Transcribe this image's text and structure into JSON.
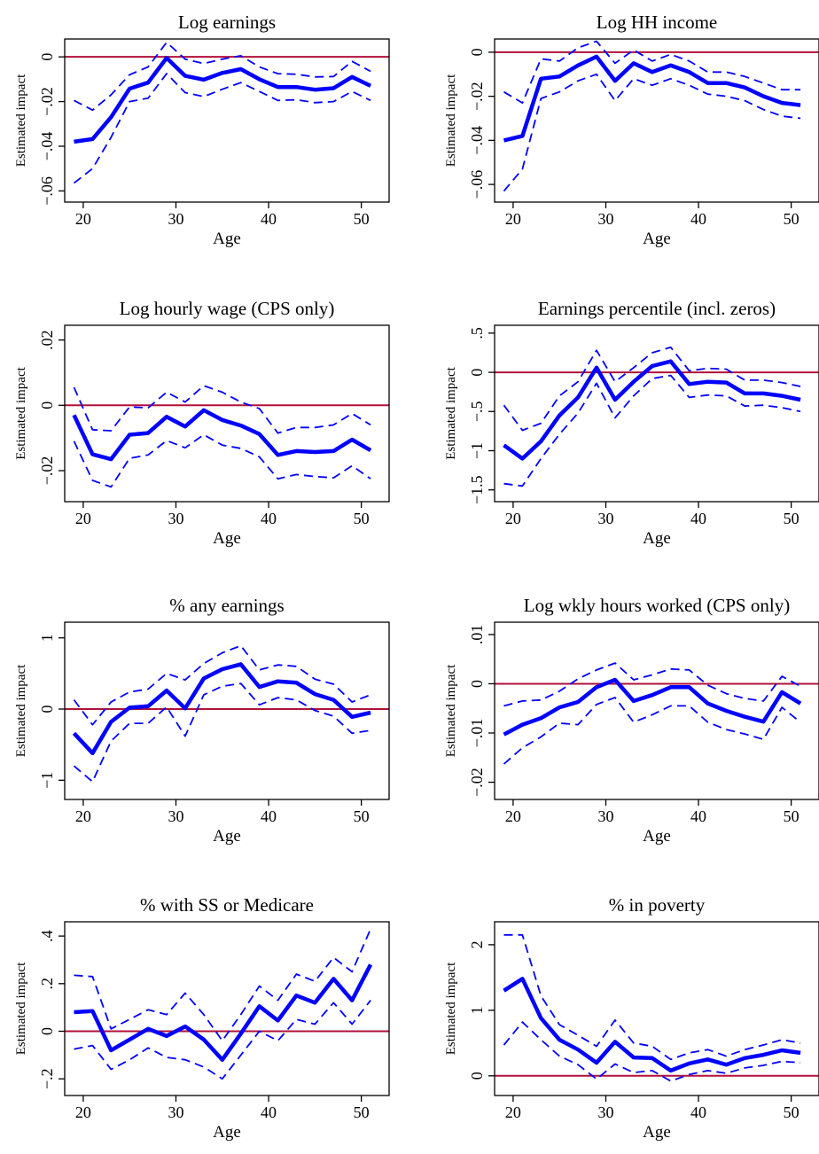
{
  "colors": {
    "estimate": "#0000ff",
    "ci": "#0000ff",
    "zero_line": "#b0103a",
    "frame": "#000000"
  },
  "chart_data": [
    {
      "type": "line",
      "title": "Log earnings",
      "xlabel": "Age",
      "ylabel": "Estimated impact",
      "xlim": [
        18,
        53
      ],
      "ylim": [
        -0.065,
        0.008
      ],
      "xticks": [
        20,
        30,
        40,
        50
      ],
      "xtick_labels": [
        "20",
        "30",
        "40",
        "50"
      ],
      "yticks": [
        -0.06,
        -0.04,
        -0.02,
        0
      ],
      "ytick_labels": [
        "−.06",
        "−.04",
        "−.02",
        "0"
      ],
      "reference_line": 0,
      "x": [
        19,
        21,
        23,
        25,
        27,
        29,
        31,
        33,
        35,
        37,
        39,
        41,
        43,
        45,
        47,
        49,
        51
      ],
      "series": [
        {
          "values": [
            -0.038,
            -0.0368,
            -0.027,
            -0.0142,
            -0.0115,
            -0.0005,
            -0.0085,
            -0.0102,
            -0.0072,
            -0.0055,
            -0.01,
            -0.0135,
            -0.0135,
            -0.0147,
            -0.014,
            -0.009,
            -0.013
          ]
        },
        {
          "values": [
            -0.0195,
            -0.0238,
            -0.017,
            -0.008,
            -0.0045,
            0.0065,
            -0.001,
            -0.003,
            -0.001,
            0.0005,
            -0.0045,
            -0.0075,
            -0.0078,
            -0.009,
            -0.0088,
            -0.002,
            -0.0065
          ]
        },
        {
          "values": [
            -0.0565,
            -0.05,
            -0.036,
            -0.02,
            -0.0185,
            -0.0075,
            -0.016,
            -0.0178,
            -0.0145,
            -0.0115,
            -0.0155,
            -0.0195,
            -0.0192,
            -0.0205,
            -0.02,
            -0.0155,
            -0.0195
          ]
        }
      ]
    },
    {
      "type": "line",
      "title": "Log HH income",
      "xlabel": "Age",
      "ylabel": "Estimated impact",
      "xlim": [
        18,
        53
      ],
      "ylim": [
        -0.068,
        0.006
      ],
      "xticks": [
        20,
        30,
        40,
        50
      ],
      "xtick_labels": [
        "20",
        "30",
        "40",
        "50"
      ],
      "yticks": [
        -0.06,
        -0.04,
        -0.02,
        0
      ],
      "ytick_labels": [
        "−.06",
        "−.04",
        "−.02",
        "0"
      ],
      "reference_line": 0,
      "x": [
        19,
        21,
        23,
        25,
        27,
        29,
        31,
        33,
        35,
        37,
        39,
        41,
        43,
        45,
        47,
        49,
        51
      ],
      "series": [
        {
          "values": [
            -0.04,
            -0.038,
            -0.012,
            -0.011,
            -0.006,
            -0.002,
            -0.013,
            -0.005,
            -0.009,
            -0.006,
            -0.009,
            -0.014,
            -0.014,
            -0.016,
            -0.02,
            -0.023,
            -0.024
          ]
        },
        {
          "values": [
            -0.018,
            -0.023,
            -0.003,
            -0.004,
            0.002,
            0.005,
            -0.005,
            0.001,
            -0.004,
            -0.001,
            -0.004,
            -0.009,
            -0.009,
            -0.011,
            -0.014,
            -0.017,
            -0.017
          ]
        },
        {
          "values": [
            -0.063,
            -0.053,
            -0.021,
            -0.018,
            -0.013,
            -0.01,
            -0.022,
            -0.012,
            -0.015,
            -0.012,
            -0.015,
            -0.019,
            -0.02,
            -0.022,
            -0.026,
            -0.029,
            -0.03
          ]
        }
      ]
    },
    {
      "type": "line",
      "title": "Log hourly wage (CPS only)",
      "xlabel": "Age",
      "ylabel": "Estimated impact",
      "xlim": [
        18,
        53
      ],
      "ylim": [
        -0.0295,
        0.0245
      ],
      "xticks": [
        20,
        30,
        40,
        50
      ],
      "xtick_labels": [
        "20",
        "30",
        "40",
        "50"
      ],
      "yticks": [
        -0.02,
        0,
        0.02
      ],
      "ytick_labels": [
        "−.02",
        "0",
        ".02"
      ],
      "reference_line": 0,
      "x": [
        19,
        21,
        23,
        25,
        27,
        29,
        31,
        33,
        35,
        37,
        39,
        41,
        43,
        45,
        47,
        49,
        51
      ],
      "series": [
        {
          "values": [
            -0.003,
            -0.015,
            -0.0165,
            -0.009,
            -0.0085,
            -0.0035,
            -0.0065,
            -0.0015,
            -0.0045,
            -0.0062,
            -0.0088,
            -0.0152,
            -0.014,
            -0.0143,
            -0.014,
            -0.0105,
            -0.0138
          ]
        },
        {
          "values": [
            0.0055,
            -0.0075,
            -0.0078,
            -0.0005,
            -0.0008,
            0.004,
            0.001,
            0.006,
            0.004,
            0.001,
            -0.001,
            -0.0085,
            -0.0068,
            -0.0068,
            -0.006,
            -0.0025,
            -0.006
          ]
        },
        {
          "values": [
            -0.011,
            -0.023,
            -0.025,
            -0.0162,
            -0.0152,
            -0.0108,
            -0.013,
            -0.009,
            -0.0122,
            -0.0132,
            -0.0158,
            -0.0225,
            -0.0212,
            -0.0218,
            -0.0222,
            -0.0185,
            -0.0225
          ]
        }
      ]
    },
    {
      "type": "line",
      "title": "Earnings percentile (incl. zeros)",
      "xlabel": "Age",
      "ylabel": "Estimated impact",
      "xlim": [
        18,
        53
      ],
      "ylim": [
        -1.65,
        0.6
      ],
      "xticks": [
        20,
        30,
        40,
        50
      ],
      "xtick_labels": [
        "20",
        "30",
        "40",
        "50"
      ],
      "yticks": [
        -1.5,
        -1,
        -0.5,
        0,
        0.5
      ],
      "ytick_labels": [
        "−1.5",
        "−1",
        "−.5",
        "0",
        ".5"
      ],
      "reference_line": 0,
      "x": [
        19,
        21,
        23,
        25,
        27,
        29,
        31,
        33,
        35,
        37,
        39,
        41,
        43,
        45,
        47,
        49,
        51
      ],
      "series": [
        {
          "values": [
            -0.93,
            -1.1,
            -0.88,
            -0.55,
            -0.32,
            0.06,
            -0.35,
            -0.12,
            0.08,
            0.14,
            -0.15,
            -0.12,
            -0.13,
            -0.27,
            -0.27,
            -0.3,
            -0.35
          ]
        },
        {
          "values": [
            -0.42,
            -0.74,
            -0.65,
            -0.3,
            -0.12,
            0.28,
            -0.12,
            0.06,
            0.25,
            0.32,
            0.02,
            0.05,
            0.04,
            -0.1,
            -0.1,
            -0.13,
            -0.18
          ]
        },
        {
          "values": [
            -1.42,
            -1.45,
            -1.1,
            -0.79,
            -0.52,
            -0.14,
            -0.58,
            -0.3,
            -0.08,
            -0.04,
            -0.32,
            -0.29,
            -0.3,
            -0.43,
            -0.42,
            -0.45,
            -0.5
          ]
        }
      ]
    },
    {
      "type": "line",
      "title": "% any earnings",
      "xlabel": "Age",
      "ylabel": "Estimated impact",
      "xlim": [
        18,
        53
      ],
      "ylim": [
        -1.27,
        1.22
      ],
      "xticks": [
        20,
        30,
        40,
        50
      ],
      "xtick_labels": [
        "20",
        "30",
        "40",
        "50"
      ],
      "yticks": [
        -1,
        0,
        1
      ],
      "ytick_labels": [
        "−1",
        "0",
        "1"
      ],
      "reference_line": 0,
      "x": [
        19,
        21,
        23,
        25,
        27,
        29,
        31,
        33,
        35,
        37,
        39,
        41,
        43,
        45,
        47,
        49,
        51
      ],
      "series": [
        {
          "values": [
            -0.34,
            -0.62,
            -0.18,
            0.02,
            0.04,
            0.26,
            0.01,
            0.43,
            0.56,
            0.63,
            0.31,
            0.39,
            0.37,
            0.21,
            0.13,
            -0.11,
            -0.05
          ]
        },
        {
          "values": [
            0.13,
            -0.22,
            0.1,
            0.24,
            0.28,
            0.5,
            0.41,
            0.64,
            0.79,
            0.89,
            0.55,
            0.62,
            0.6,
            0.42,
            0.35,
            0.1,
            0.2
          ]
        },
        {
          "values": [
            -0.8,
            -1.02,
            -0.45,
            -0.2,
            -0.2,
            0.03,
            -0.38,
            0.2,
            0.32,
            0.36,
            0.06,
            0.16,
            0.13,
            -0.02,
            -0.1,
            -0.34,
            -0.3
          ]
        }
      ]
    },
    {
      "type": "line",
      "title": "Log wkly hours worked (CPS only)",
      "xlabel": "Age",
      "ylabel": "Estimated impact",
      "xlim": [
        18,
        53
      ],
      "ylim": [
        -0.0235,
        0.0125
      ],
      "xticks": [
        20,
        30,
        40,
        50
      ],
      "xtick_labels": [
        "20",
        "30",
        "40",
        "50"
      ],
      "yticks": [
        -0.02,
        -0.01,
        0,
        0.01
      ],
      "ytick_labels": [
        "−.02",
        "−.01",
        "0",
        ".01"
      ],
      "reference_line": 0,
      "x": [
        19,
        21,
        23,
        25,
        27,
        29,
        31,
        33,
        35,
        37,
        39,
        41,
        43,
        45,
        47,
        49,
        51
      ],
      "series": [
        {
          "values": [
            -0.0103,
            -0.0083,
            -0.007,
            -0.0048,
            -0.0037,
            -0.0007,
            0.0008,
            -0.0035,
            -0.0023,
            -0.0007,
            -0.0007,
            -0.004,
            -0.0055,
            -0.0067,
            -0.0077,
            -0.0017,
            -0.004
          ]
        },
        {
          "values": [
            -0.0045,
            -0.0035,
            -0.0033,
            -0.0015,
            0.001,
            0.0028,
            0.0042,
            0.0008,
            0.0018,
            0.003,
            0.0028,
            -0.0003,
            -0.002,
            -0.003,
            -0.0035,
            0.0015,
            -0.0005
          ]
        },
        {
          "values": [
            -0.0163,
            -0.013,
            -0.0108,
            -0.008,
            -0.0083,
            -0.0042,
            -0.0028,
            -0.0078,
            -0.0063,
            -0.0045,
            -0.0045,
            -0.0078,
            -0.0093,
            -0.0102,
            -0.0113,
            -0.0048,
            -0.0078
          ]
        }
      ]
    },
    {
      "type": "line",
      "title": "% with SS or Medicare",
      "xlabel": "Age",
      "ylabel": "Estimated impact",
      "xlim": [
        18,
        53
      ],
      "ylim": [
        -0.27,
        0.46
      ],
      "xticks": [
        20,
        30,
        40,
        50
      ],
      "xtick_labels": [
        "20",
        "30",
        "40",
        "50"
      ],
      "yticks": [
        -0.2,
        0,
        0.2,
        0.4
      ],
      "ytick_labels": [
        "−.2",
        "0",
        ".2",
        ".4"
      ],
      "reference_line": 0,
      "x": [
        19,
        21,
        23,
        25,
        27,
        29,
        31,
        33,
        35,
        37,
        39,
        41,
        43,
        45,
        47,
        49,
        51
      ],
      "series": [
        {
          "values": [
            0.08,
            0.085,
            -0.08,
            -0.035,
            0.01,
            -0.02,
            0.02,
            -0.035,
            -0.12,
            -0.01,
            0.105,
            0.045,
            0.15,
            0.12,
            0.22,
            0.13,
            0.28
          ]
        },
        {
          "values": [
            0.235,
            0.23,
            0.01,
            0.05,
            0.09,
            0.07,
            0.16,
            0.07,
            -0.04,
            0.07,
            0.19,
            0.13,
            0.24,
            0.21,
            0.31,
            0.25,
            0.43
          ]
        },
        {
          "values": [
            -0.075,
            -0.06,
            -0.16,
            -0.12,
            -0.07,
            -0.11,
            -0.12,
            -0.15,
            -0.2,
            -0.1,
            0.0,
            -0.04,
            0.05,
            0.03,
            0.12,
            0.03,
            0.13
          ]
        }
      ]
    },
    {
      "type": "line",
      "title": "% in poverty",
      "xlabel": "Age",
      "ylabel": "Estimated impact",
      "xlim": [
        18,
        53
      ],
      "ylim": [
        -0.3,
        2.35
      ],
      "xticks": [
        20,
        30,
        40,
        50
      ],
      "xtick_labels": [
        "20",
        "30",
        "40",
        "50"
      ],
      "yticks": [
        0,
        1,
        2
      ],
      "ytick_labels": [
        "0",
        "1",
        "2"
      ],
      "reference_line": 0,
      "x": [
        19,
        21,
        23,
        25,
        27,
        29,
        31,
        33,
        35,
        37,
        39,
        41,
        43,
        45,
        47,
        49,
        51
      ],
      "series": [
        {
          "values": [
            1.3,
            1.48,
            0.88,
            0.55,
            0.4,
            0.2,
            0.52,
            0.28,
            0.27,
            0.08,
            0.19,
            0.25,
            0.17,
            0.27,
            0.32,
            0.39,
            0.35
          ]
        },
        {
          "values": [
            2.15,
            2.15,
            1.22,
            0.78,
            0.62,
            0.45,
            0.85,
            0.5,
            0.45,
            0.25,
            0.35,
            0.4,
            0.3,
            0.4,
            0.47,
            0.55,
            0.5
          ]
        },
        {
          "values": [
            0.47,
            0.82,
            0.55,
            0.3,
            0.17,
            -0.05,
            0.18,
            0.05,
            0.08,
            -0.08,
            0.02,
            0.08,
            0.04,
            0.12,
            0.16,
            0.22,
            0.2
          ]
        }
      ]
    }
  ]
}
